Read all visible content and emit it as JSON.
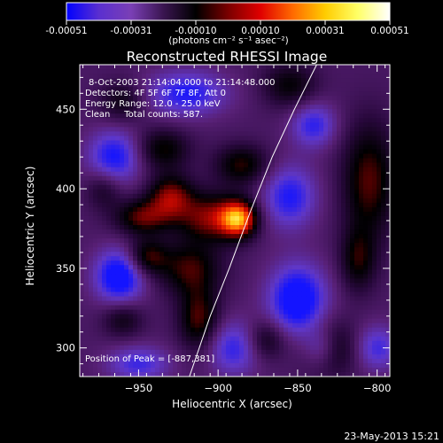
{
  "chart_data": {
    "type": "heatmap",
    "title": "Reconstructed RHESSI Image",
    "xlabel": "Heliocentric X (arcsec)",
    "ylabel": "Heliocentric Y (arcsec)",
    "xlim": [
      -987,
      -792
    ],
    "ylim": [
      282,
      478
    ],
    "x_ticks": [
      -950,
      -900,
      -850,
      -800
    ],
    "y_ticks": [
      300,
      350,
      400,
      450
    ],
    "grid": false,
    "colorbar": {
      "position": "top",
      "ticks": [
        "-0.00051",
        "-0.00031",
        "-0.00010",
        "0.00010",
        "0.00031",
        "0.00051"
      ],
      "units_label": "(photons cm⁻² s⁻¹ asec⁻²)",
      "range": [
        -0.00051,
        0.00051
      ],
      "colors": [
        "#0000ff",
        "#5a2fd0",
        "#7a3fb5",
        "#3a1550",
        "#000000",
        "#7a0000",
        "#e00000",
        "#ff6a00",
        "#ffcc00",
        "#ffff66",
        "#ffffff"
      ]
    },
    "annotations": [
      "8-Oct-2003 21:14:04.000 to 21:14:48.000",
      "Detectors: 4F 5F 6F 7F 8F, Att 0",
      "Energy Range: 12.0 - 25.0 keV",
      "Clean     Total counts: 587."
    ],
    "peak_label": "Position of Peak = [-887,381]",
    "peak": {
      "x": -887,
      "y": 381
    },
    "limb_line": [
      [
        -918,
        282
      ],
      [
        -905,
        320
      ],
      [
        -893,
        350
      ],
      [
        -880,
        385
      ],
      [
        -866,
        420
      ],
      [
        -852,
        450
      ],
      [
        -838,
        478
      ]
    ],
    "intensity_sources": [
      {
        "x": -887,
        "y": 381,
        "sx": 8,
        "sy": 8,
        "amp": 1.0
      },
      {
        "x": -905,
        "y": 382,
        "sx": 14,
        "sy": 11,
        "amp": 0.62
      },
      {
        "x": -930,
        "y": 395,
        "sx": 10,
        "sy": 10,
        "amp": 0.62
      },
      {
        "x": -948,
        "y": 382,
        "sx": 12,
        "sy": 8,
        "amp": 0.55
      },
      {
        "x": -945,
        "y": 357,
        "sx": 9,
        "sy": 8,
        "amp": 0.52
      },
      {
        "x": -918,
        "y": 350,
        "sx": 14,
        "sy": 12,
        "amp": 0.5
      },
      {
        "x": -912,
        "y": 318,
        "sx": 9,
        "sy": 14,
        "amp": 0.55
      },
      {
        "x": -935,
        "y": 425,
        "sx": 12,
        "sy": 9,
        "amp": 0.45
      },
      {
        "x": -885,
        "y": 415,
        "sx": 12,
        "sy": 9,
        "amp": 0.48
      },
      {
        "x": -960,
        "y": 455,
        "sx": 10,
        "sy": 9,
        "amp": 0.35
      },
      {
        "x": -805,
        "y": 405,
        "sx": 12,
        "sy": 26,
        "amp": 0.55
      },
      {
        "x": -812,
        "y": 355,
        "sx": 8,
        "sy": 14,
        "amp": 0.42
      },
      {
        "x": -830,
        "y": 300,
        "sx": 12,
        "sy": 12,
        "amp": 0.5
      },
      {
        "x": -855,
        "y": 465,
        "sx": 12,
        "sy": 10,
        "amp": 0.4
      },
      {
        "x": -870,
        "y": 305,
        "sx": 9,
        "sy": 9,
        "amp": 0.4
      },
      {
        "x": -960,
        "y": 318,
        "sx": 9,
        "sy": 8,
        "amp": 0.35
      },
      {
        "x": -972,
        "y": 400,
        "sx": 8,
        "sy": 9,
        "amp": 0.3
      },
      {
        "x": -962,
        "y": 345,
        "sx": 11,
        "sy": 12,
        "amp": -0.75
      },
      {
        "x": -850,
        "y": 330,
        "sx": 13,
        "sy": 16,
        "amp": -0.75
      },
      {
        "x": -835,
        "y": 300,
        "sx": 8,
        "sy": 9,
        "amp": -0.5
      },
      {
        "x": -965,
        "y": 420,
        "sx": 12,
        "sy": 12,
        "amp": -0.6
      },
      {
        "x": -920,
        "y": 460,
        "sx": 18,
        "sy": 10,
        "amp": -0.55
      },
      {
        "x": -855,
        "y": 395,
        "sx": 12,
        "sy": 14,
        "amp": -0.55
      },
      {
        "x": -890,
        "y": 300,
        "sx": 12,
        "sy": 12,
        "amp": -0.5
      },
      {
        "x": -840,
        "y": 440,
        "sx": 10,
        "sy": 10,
        "amp": -0.5
      },
      {
        "x": -950,
        "y": 290,
        "sx": 14,
        "sy": 8,
        "amp": -0.45
      },
      {
        "x": -800,
        "y": 300,
        "sx": 10,
        "sy": 10,
        "amp": -0.45
      }
    ]
  },
  "footer": {
    "timestamp": "23-May-2013 15:21"
  }
}
